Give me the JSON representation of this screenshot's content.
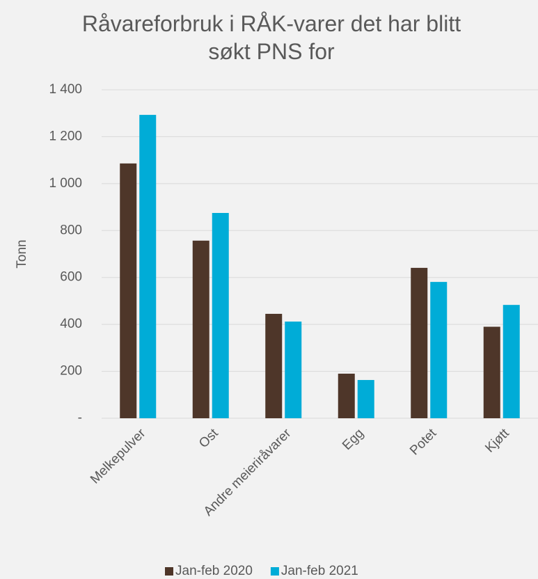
{
  "chart_data": {
    "type": "bar",
    "title": "Råvareforbruk i RÅK-varer det har blitt søkt PNS for",
    "y_label": "Tonn",
    "categories": [
      "Melkepulver",
      "Ost",
      "Andre meieriråvarer",
      "Egg",
      "Potet",
      "Kjøtt"
    ],
    "series": [
      {
        "name": "Jan-feb 2020",
        "color": "#4e3629",
        "values": [
          1086,
          757,
          445,
          190,
          641,
          390
        ]
      },
      {
        "name": "Jan-feb 2021",
        "color": "#00acd7",
        "values": [
          1293,
          875,
          412,
          163,
          581,
          483
        ]
      }
    ],
    "ylim": [
      0,
      1400
    ],
    "yticks": [
      {
        "value": 0,
        "label": "-"
      },
      200,
      400,
      600,
      800,
      {
        "value": 1000,
        "label": "1 000"
      },
      {
        "value": 1200,
        "label": "1 200"
      },
      {
        "value": 1400,
        "label": "1 400"
      }
    ],
    "grid": true,
    "legend": "bottom"
  }
}
